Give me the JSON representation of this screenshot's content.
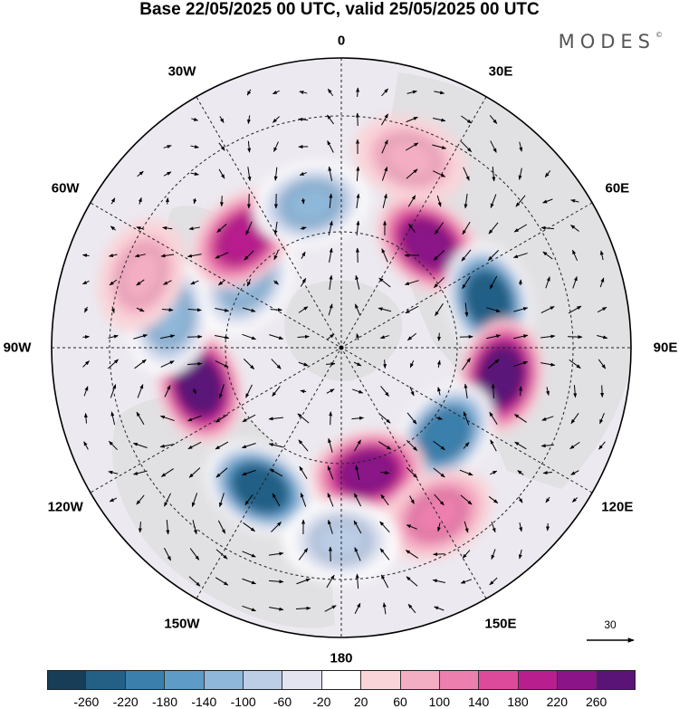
{
  "title": "Base 22/05/2025 00 UTC, valid 25/05/2025 00 UTC",
  "brand": {
    "text": "MODES",
    "mark": "©"
  },
  "longitude_labels": [
    "0",
    "30E",
    "60E",
    "90E",
    "120E",
    "150E",
    "180",
    "150W",
    "120W",
    "90W",
    "60W",
    "30W"
  ],
  "reference_vector": {
    "value": "30"
  },
  "colorbar": {
    "colors": [
      "#173d57",
      "#245f86",
      "#3b80ad",
      "#5e9cc7",
      "#8fb7d9",
      "#bccde6",
      "#e3e4f0",
      "#ffffff",
      "#f9d5d9",
      "#f4aec4",
      "#ec7fae",
      "#dd4a9b",
      "#b81e8e",
      "#8a1488",
      "#5a1478"
    ],
    "tick_labels": [
      "-260",
      "-220",
      "-180",
      "-140",
      "-100",
      "-60",
      "-20",
      "20",
      "60",
      "100",
      "140",
      "180",
      "220",
      "260"
    ]
  },
  "anomaly_centers": [
    {
      "lon": 40,
      "lat": 55,
      "value": 230
    },
    {
      "lon": 72,
      "lat": 50,
      "value": -270
    },
    {
      "lon": 100,
      "lat": 48,
      "value": 260
    },
    {
      "lon": 130,
      "lat": 55,
      "value": -230
    },
    {
      "lon": 168,
      "lat": 57,
      "value": 240
    },
    {
      "lon": -150,
      "lat": 48,
      "value": -270
    },
    {
      "lon": -105,
      "lat": 52,
      "value": 260
    },
    {
      "lon": -80,
      "lat": 45,
      "value": -160
    },
    {
      "lon": -55,
      "lat": 60,
      "value": -150
    },
    {
      "lon": -42,
      "lat": 52,
      "value": 180
    },
    {
      "lon": -12,
      "lat": 52,
      "value": -150
    },
    {
      "lon": 150,
      "lat": 40,
      "value": 120
    },
    {
      "lon": 180,
      "lat": 40,
      "value": -120
    },
    {
      "lon": -70,
      "lat": 35,
      "value": 70
    },
    {
      "lon": 20,
      "lat": 38,
      "value": 60
    }
  ]
}
